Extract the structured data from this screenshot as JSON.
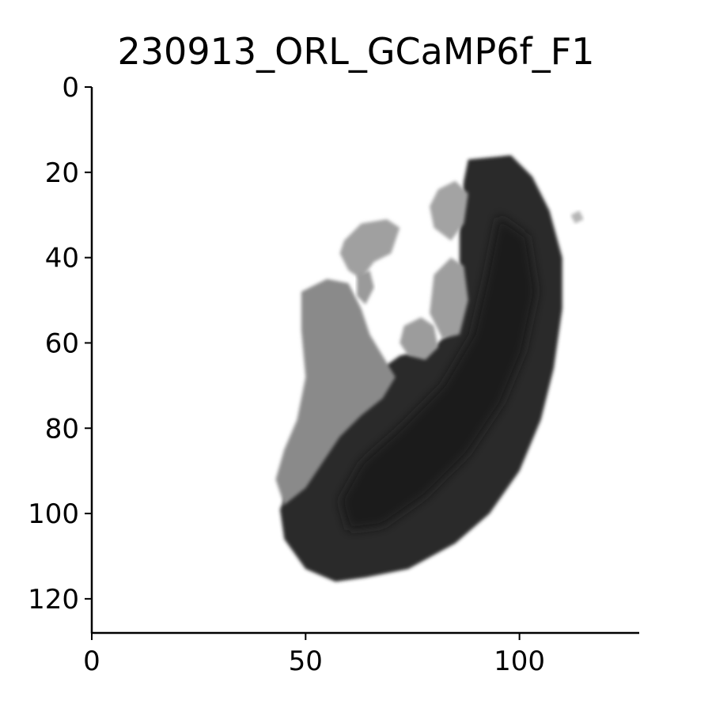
{
  "chart_data": {
    "type": "heatmap",
    "title": "230913_ORL_GCaMP6f_F1",
    "xlabel": "",
    "ylabel": "",
    "x_ticks": [
      0,
      50,
      100
    ],
    "y_ticks": [
      0,
      20,
      40,
      60,
      80,
      100,
      120
    ],
    "xlim": [
      0,
      128
    ],
    "ylim": [
      128,
      0
    ],
    "y_inverted": true,
    "colormap": "grayscale",
    "grid": false,
    "regions": [
      {
        "label": "dark main body",
        "intensity": "dark",
        "color": "#2a2a2a",
        "outline": [
          [
            88,
            17
          ],
          [
            98,
            16
          ],
          [
            103,
            21
          ],
          [
            107,
            29
          ],
          [
            110,
            40
          ],
          [
            110,
            52
          ],
          [
            108,
            66
          ],
          [
            105,
            78
          ],
          [
            100,
            90
          ],
          [
            93,
            100
          ],
          [
            85,
            107
          ],
          [
            74,
            113
          ],
          [
            64,
            115
          ],
          [
            57,
            116
          ],
          [
            50,
            113
          ],
          [
            45,
            106
          ],
          [
            44,
            99
          ],
          [
            47,
            92
          ],
          [
            52,
            84
          ],
          [
            58,
            76
          ],
          [
            65,
            68
          ],
          [
            72,
            63
          ],
          [
            80,
            61
          ],
          [
            85,
            56
          ],
          [
            86,
            45
          ],
          [
            86,
            32
          ],
          [
            87,
            22
          ]
        ]
      },
      {
        "label": "medium gray lobe",
        "intensity": "medium",
        "color": "#8a8a8a",
        "outline": [
          [
            49,
            48
          ],
          [
            55,
            45
          ],
          [
            60,
            46
          ],
          [
            63,
            52
          ],
          [
            65,
            58
          ],
          [
            68,
            63
          ],
          [
            71,
            68
          ],
          [
            68,
            73
          ],
          [
            63,
            77
          ],
          [
            58,
            82
          ],
          [
            54,
            88
          ],
          [
            50,
            94
          ],
          [
            45,
            98
          ],
          [
            43,
            92
          ],
          [
            45,
            85
          ],
          [
            48,
            78
          ],
          [
            50,
            68
          ],
          [
            49,
            57
          ]
        ]
      },
      {
        "label": "upper light patch",
        "intensity": "light",
        "color": "#a0a0a0",
        "outline": [
          [
            59,
            36
          ],
          [
            63,
            32
          ],
          [
            69,
            31
          ],
          [
            72,
            33
          ],
          [
            70,
            39
          ],
          [
            66,
            41
          ],
          [
            63,
            45
          ],
          [
            60,
            43
          ],
          [
            58,
            39
          ]
        ]
      },
      {
        "label": "small light fragment left",
        "intensity": "light",
        "color": "#9a9a9a",
        "outline": [
          [
            62,
            44
          ],
          [
            65,
            43
          ],
          [
            66,
            47
          ],
          [
            64,
            51
          ],
          [
            62,
            49
          ]
        ]
      },
      {
        "label": "middle light fragment",
        "intensity": "light",
        "color": "#9c9c9c",
        "outline": [
          [
            73,
            56
          ],
          [
            77,
            54
          ],
          [
            80,
            56
          ],
          [
            81,
            61
          ],
          [
            78,
            64
          ],
          [
            74,
            63
          ],
          [
            72,
            60
          ]
        ]
      },
      {
        "label": "right inner fragment",
        "intensity": "light",
        "color": "#9e9e9e",
        "outline": [
          [
            80,
            44
          ],
          [
            84,
            40
          ],
          [
            87,
            42
          ],
          [
            88,
            50
          ],
          [
            86,
            58
          ],
          [
            82,
            59
          ],
          [
            79,
            53
          ]
        ]
      },
      {
        "label": "upper right fragment",
        "intensity": "light",
        "color": "#a3a3a3",
        "outline": [
          [
            81,
            24
          ],
          [
            85,
            22
          ],
          [
            88,
            25
          ],
          [
            87,
            32
          ],
          [
            84,
            36
          ],
          [
            80,
            33
          ],
          [
            79,
            28
          ]
        ]
      },
      {
        "label": "dark core",
        "intensity": "darkest",
        "color": "#1a1a1a",
        "outline": [
          [
            95,
            30
          ],
          [
            102,
            35
          ],
          [
            104,
            48
          ],
          [
            101,
            62
          ],
          [
            96,
            74
          ],
          [
            88,
            86
          ],
          [
            78,
            96
          ],
          [
            68,
            103
          ],
          [
            60,
            104
          ],
          [
            58,
            97
          ],
          [
            63,
            88
          ],
          [
            72,
            80
          ],
          [
            82,
            70
          ],
          [
            89,
            58
          ],
          [
            92,
            45
          ]
        ]
      },
      {
        "label": "isolated speck",
        "intensity": "light",
        "color": "#b5b5b5",
        "outline": [
          [
            112,
            30
          ],
          [
            114,
            29
          ],
          [
            115,
            31
          ],
          [
            113,
            32
          ]
        ]
      }
    ]
  }
}
